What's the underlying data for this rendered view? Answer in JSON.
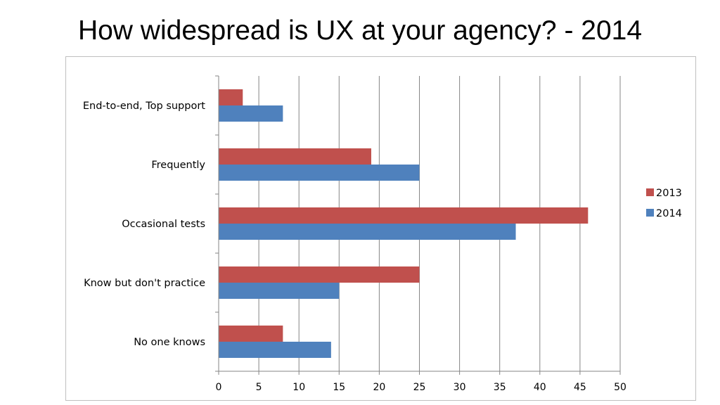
{
  "slide": {
    "title": "How widespread is UX at your agency? - 2014"
  },
  "chart_data": {
    "type": "bar",
    "orientation": "horizontal",
    "title": "",
    "xlabel": "",
    "ylabel": "",
    "xlim": [
      0,
      50
    ],
    "x_ticks": [
      0,
      5,
      10,
      15,
      20,
      25,
      30,
      35,
      40,
      45,
      50
    ],
    "grid": true,
    "legend_position": "right",
    "categories": [
      "End-to-end, Top support",
      "Frequently",
      "Occasional tests",
      "Know but don't practice",
      "No one knows"
    ],
    "series": [
      {
        "name": "2013",
        "color": "#c0504d",
        "values": [
          3,
          19,
          46,
          25,
          8
        ]
      },
      {
        "name": "2014",
        "color": "#4f81bd",
        "values": [
          8,
          25,
          37,
          15,
          14
        ]
      }
    ]
  }
}
